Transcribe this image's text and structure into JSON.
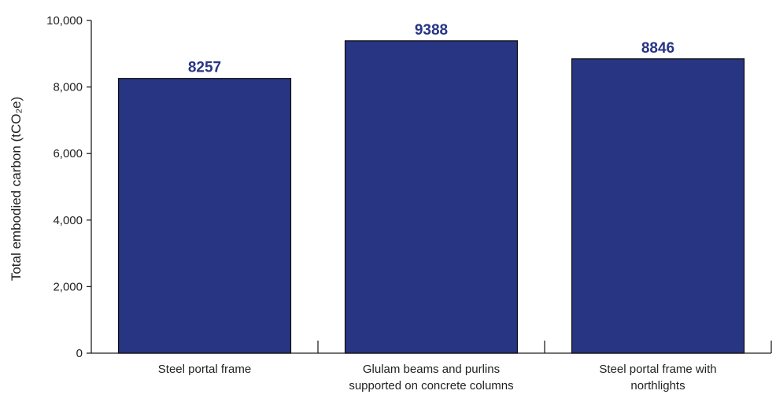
{
  "chart_data": {
    "type": "bar",
    "title": "",
    "xlabel": "",
    "ylabel": "Total embodied carbon (tCO₂e)",
    "ylim": [
      0,
      10000
    ],
    "yticks": [
      0,
      2000,
      4000,
      6000,
      8000,
      10000
    ],
    "ytick_labels": [
      "0",
      "2,000",
      "4,000",
      "6,000",
      "8,000",
      "10,000"
    ],
    "categories": [
      "Steel portal frame",
      "Glulam beams and purlins supported on concrete columns",
      "Steel portal frame with northlights"
    ],
    "category_lines": [
      [
        "Steel portal frame"
      ],
      [
        "Glulam beams and purlins",
        "supported on concrete columns"
      ],
      [
        "Steel portal frame with",
        "northlights"
      ]
    ],
    "values": [
      8257,
      9388,
      8846
    ],
    "value_labels": [
      "8257",
      "9388",
      "8846"
    ],
    "bar_color": "#283583",
    "label_color": "#283583",
    "grid": false,
    "legend": "none"
  }
}
